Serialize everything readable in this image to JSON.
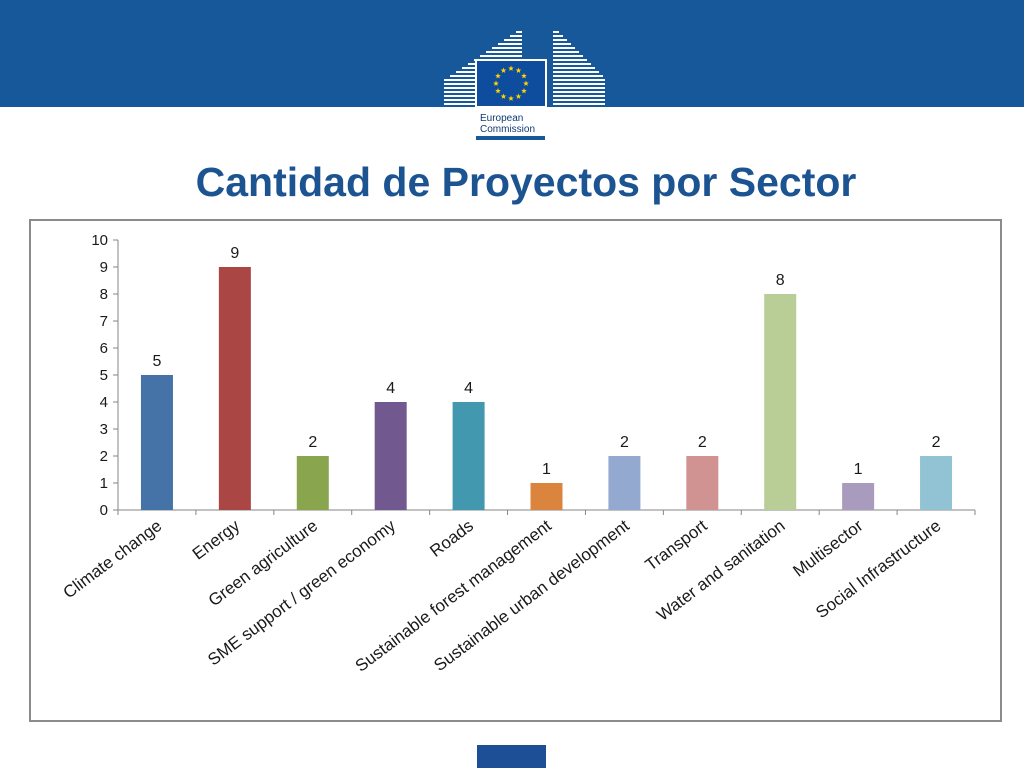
{
  "slide": {
    "title": "Cantidad de Proyectos por Sector",
    "banner_color": "#16589a",
    "title_color": "#1c5492"
  },
  "logo": {
    "line1": "European",
    "line2": "Commission",
    "icon": "eu-flag-icon",
    "flag_color": "#0e4c9e",
    "star_color": "#ffd200"
  },
  "chart_data": {
    "type": "bar",
    "categories": [
      "Climate change",
      "Energy",
      "Green agriculture",
      "SME support / green economy",
      "Roads",
      "Sustainable forest management",
      "Sustainable urban development",
      "Transport",
      "Water and sanitation",
      "Multisector",
      "Social Infrastructure"
    ],
    "values": [
      5,
      9,
      2,
      4,
      4,
      1,
      2,
      2,
      8,
      1,
      2
    ],
    "colors": [
      "#4572a7",
      "#aa4643",
      "#89a54e",
      "#71588f",
      "#4198af",
      "#db843d",
      "#93a9cf",
      "#d19392",
      "#b9cd96",
      "#a99bbd",
      "#92c3d5"
    ],
    "ylim": [
      0,
      10
    ],
    "yticks": [
      0,
      1,
      2,
      3,
      4,
      5,
      6,
      7,
      8,
      9,
      10
    ],
    "data_labels": true,
    "grid": false,
    "legend": "none"
  }
}
